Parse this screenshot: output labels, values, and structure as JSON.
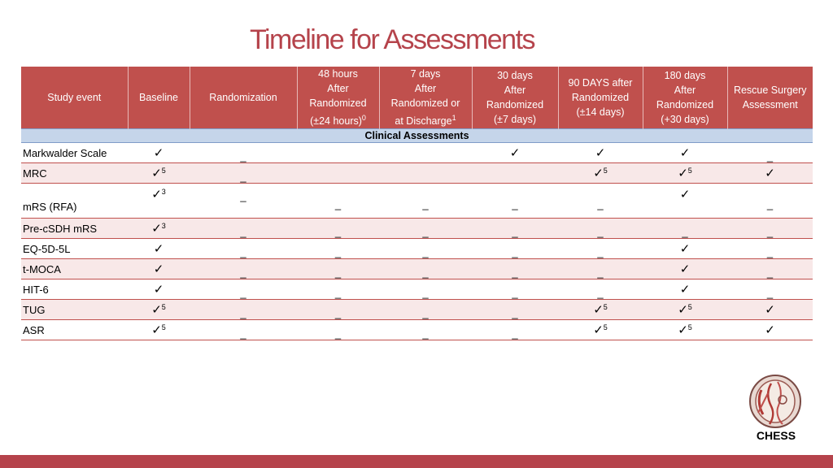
{
  "title": "Timeline for Assessments",
  "headers": {
    "study_event": "Study event",
    "baseline": "Baseline",
    "randomization": "Randomization",
    "h48": [
      "48 hours",
      "After",
      "Randomized",
      "(±24 hours)"
    ],
    "h48_sup": "0",
    "d7": [
      "7 days",
      "After",
      "Randomized or",
      "at Discharge"
    ],
    "d7_sup": "1",
    "d30": [
      "30 days",
      "After",
      "Randomized",
      "(±7 days)"
    ],
    "d90": [
      "90 DAYS after",
      "Randomized",
      "(±14 days)"
    ],
    "d180": [
      "180 days",
      "After",
      "Randomized",
      "(+30 days)"
    ],
    "rescue": [
      "Rescue Surgery",
      "Assessment"
    ]
  },
  "section": "Clinical Assessments",
  "check": "✓",
  "dash": "_",
  "rows": [
    {
      "label": "Markwalder Scale"
    },
    {
      "label": "MRC",
      "sup": "5"
    },
    {
      "label": "mRS (RFA)",
      "sup": "3"
    },
    {
      "label": "Pre-cSDH mRS",
      "sup": "3"
    },
    {
      "label": "EQ-5D-5L"
    },
    {
      "label": "t-MOCA"
    },
    {
      "label": "HIT-6"
    },
    {
      "label": "TUG",
      "sup": "5"
    },
    {
      "label": "ASR",
      "sup": "5"
    }
  ],
  "logo_text": "CHESS",
  "colors": {
    "accent": "#c0504d",
    "title": "#b5434b",
    "section": "#c5d5ea",
    "alt_row": "#f8e8e8"
  }
}
